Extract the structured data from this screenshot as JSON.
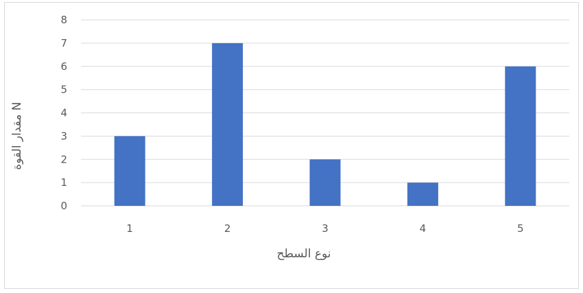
{
  "chart_data": {
    "type": "bar",
    "title": "",
    "categories": [
      "1",
      "2",
      "3",
      "4",
      "5"
    ],
    "values": [
      3,
      7,
      2,
      1,
      6
    ],
    "xlabel": "نوع السطح",
    "ylabel": "مقدار القوة N",
    "ylim": [
      0,
      8
    ],
    "yticks": [
      "0",
      "1",
      "2",
      "3",
      "4",
      "5",
      "6",
      "7",
      "8"
    ],
    "grid": true,
    "legend": "none",
    "bar_color": "#4472C4",
    "grid_color": "#d9d9d9"
  }
}
